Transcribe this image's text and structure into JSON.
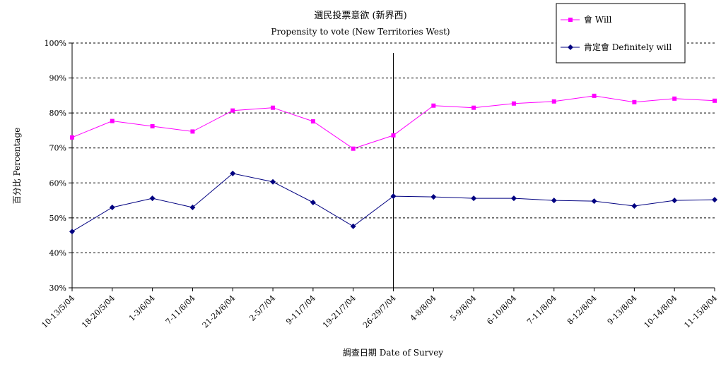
{
  "chart_data": {
    "type": "line",
    "title": "選民投票意欲 (新界西)",
    "subtitle": "Propensity to vote (New Territories West)",
    "xlabel": "調查日期 Date of Survey",
    "ylabel": "百分比 Percentage",
    "ylim": [
      30,
      100
    ],
    "yticks": [
      "30%",
      "40%",
      "50%",
      "60%",
      "70%",
      "80%",
      "90%",
      "100%"
    ],
    "grid": true,
    "legend_position": "top-right",
    "categories": [
      "10-13/5/04",
      "18-20/5/04",
      "1-3/6/04",
      "7-11/6/04",
      "21-24/6/04",
      "2-5/7/04",
      "9-11/7/04",
      "19-21/7/04",
      "26-29/7/04",
      "4-8/8/04",
      "5-9/8/04",
      "6-10/8/04",
      "7-11/8/04",
      "8-12/8/04",
      "9-13/8/04",
      "10-14/8/04",
      "11-15/8/04"
    ],
    "series": [
      {
        "name": "會 Will",
        "color": "#ff00ff",
        "marker": "square",
        "values": [
          73.0,
          77.7,
          76.2,
          74.7,
          80.7,
          81.5,
          77.6,
          69.8,
          73.6,
          82.1,
          81.5,
          82.7,
          83.3,
          84.9,
          83.1,
          84.1,
          83.5
        ]
      },
      {
        "name": "肯定會 Definitely will",
        "color": "#000080",
        "marker": "diamond",
        "values": [
          46.1,
          53.0,
          55.6,
          53.0,
          62.7,
          60.3,
          54.4,
          47.6,
          56.2,
          56.0,
          55.6,
          55.6,
          55.0,
          54.8,
          53.4,
          55.0,
          55.2
        ]
      }
    ],
    "vertical_marker_after_category": "26-29/7/04"
  }
}
